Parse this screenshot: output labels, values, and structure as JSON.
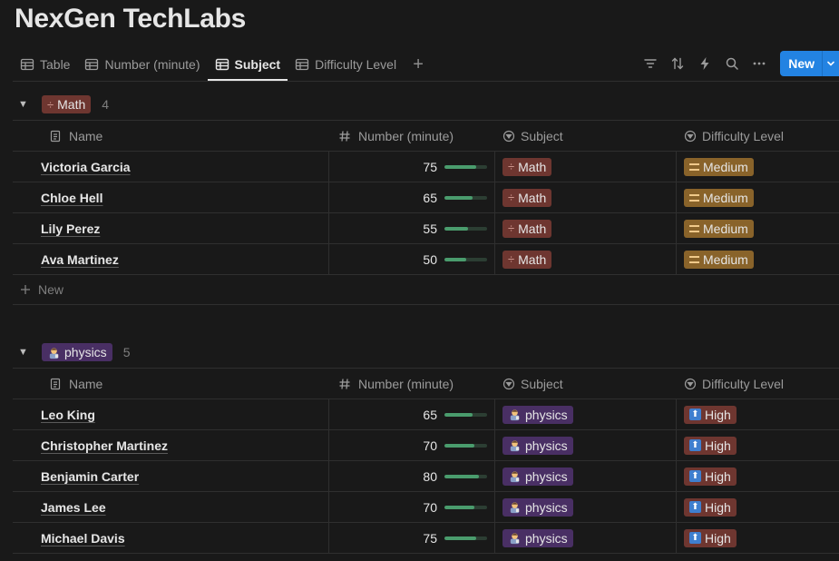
{
  "page": {
    "title": "NexGen TechLabs"
  },
  "tabs": [
    {
      "label": "Table",
      "active": false
    },
    {
      "label": "Number (minute)",
      "active": false
    },
    {
      "label": "Subject",
      "active": true
    },
    {
      "label": "Difficulty Level",
      "active": false
    }
  ],
  "toolbar": {
    "add_tab_label": "+",
    "new_label": "New",
    "icons": [
      "filter-icon",
      "sort-icon",
      "automation-icon",
      "search-icon",
      "more-icon"
    ]
  },
  "columns": {
    "name": "Name",
    "number": "Number (minute)",
    "subject": "Subject",
    "difficulty": "Difficulty Level"
  },
  "colors": {
    "accent": "#2383e2",
    "math_tag": "#6e3630",
    "physics_tag": "#492f64",
    "medium_tag": "#89632a",
    "high_tag": "#6e3630",
    "progress": "#4a9c6d"
  },
  "groups": [
    {
      "label": "Math",
      "count": "4",
      "new_row_label": "New",
      "rows": [
        {
          "name": "Victoria Garcia",
          "number": "75",
          "progress": 0.75,
          "subject": "Math",
          "difficulty": "Medium"
        },
        {
          "name": "Chloe Hell",
          "number": "65",
          "progress": 0.65,
          "subject": "Math",
          "difficulty": "Medium"
        },
        {
          "name": "Lily Perez",
          "number": "55",
          "progress": 0.55,
          "subject": "Math",
          "difficulty": "Medium"
        },
        {
          "name": "Ava Martinez",
          "number": "50",
          "progress": 0.5,
          "subject": "Math",
          "difficulty": "Medium"
        }
      ]
    },
    {
      "label": "physics",
      "count": "5",
      "rows": [
        {
          "name": "Leo King",
          "number": "65",
          "progress": 0.65,
          "subject": "physics",
          "difficulty": "High"
        },
        {
          "name": "Christopher Martinez",
          "number": "70",
          "progress": 0.7,
          "subject": "physics",
          "difficulty": "High"
        },
        {
          "name": "Benjamin Carter",
          "number": "80",
          "progress": 0.8,
          "subject": "physics",
          "difficulty": "High"
        },
        {
          "name": "James Lee",
          "number": "70",
          "progress": 0.7,
          "subject": "physics",
          "difficulty": "High"
        },
        {
          "name": "Michael Davis",
          "number": "75",
          "progress": 0.75,
          "subject": "physics",
          "difficulty": "High"
        }
      ]
    }
  ]
}
